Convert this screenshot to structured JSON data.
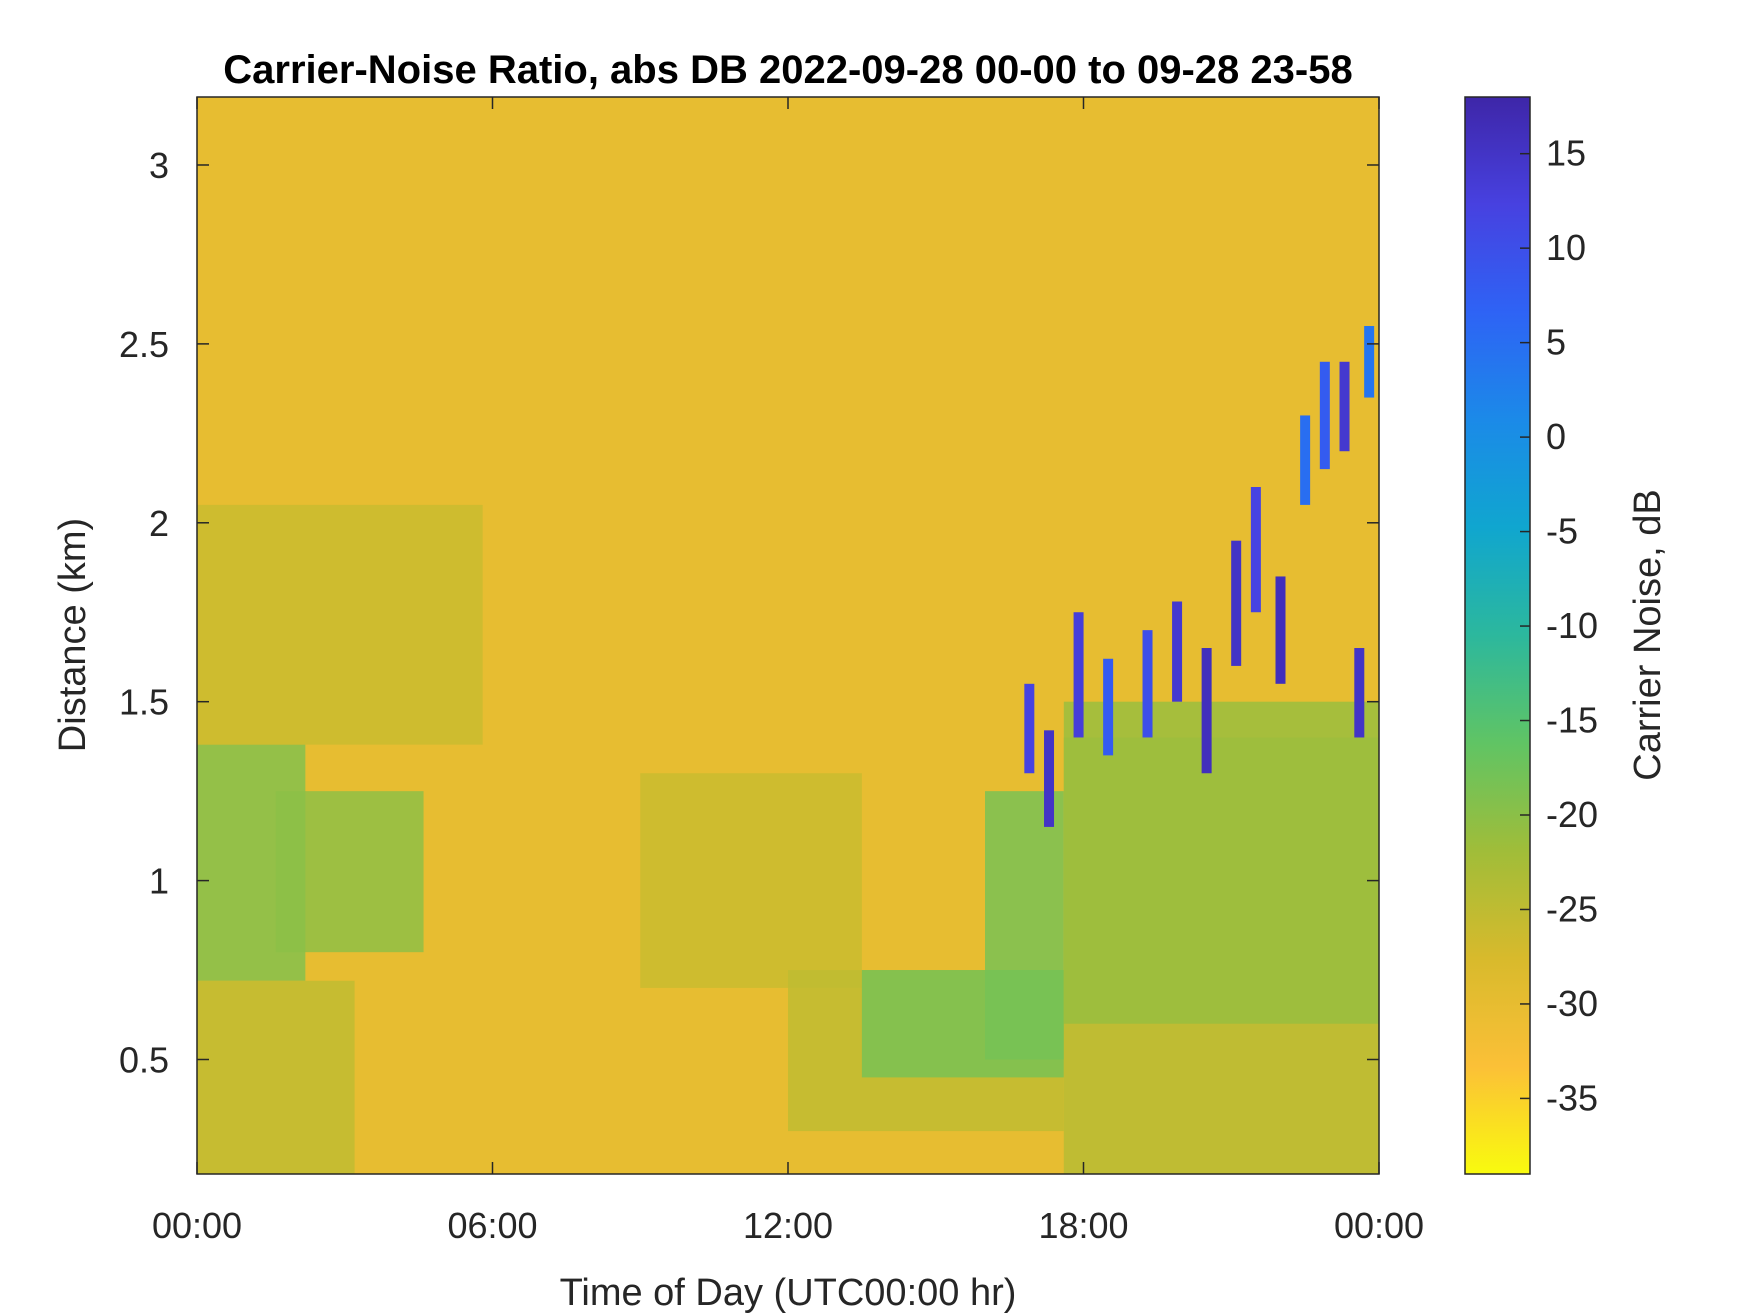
{
  "chart_data": {
    "type": "heatmap",
    "title": "Carrier-Noise Ratio, abs DB 2022-09-28 00-00 to 09-28 23-58",
    "xlabel": "Time of Day (UTC00:00 hr)",
    "ylabel": "Distance (km)",
    "colorbar_label": "Carrier Noise, dB",
    "x_ticks": [
      "00:00",
      "06:00",
      "12:00",
      "18:00",
      "00:00"
    ],
    "x_tick_hours": [
      0,
      6,
      12,
      18,
      24
    ],
    "xlim_hours": [
      0,
      24
    ],
    "y_ticks": [
      "0.5",
      "1",
      "1.5",
      "2",
      "2.5",
      "3"
    ],
    "y_tick_values": [
      0.5,
      1,
      1.5,
      2,
      2.5,
      3
    ],
    "ylim": [
      0.18,
      3.19
    ],
    "colorbar_ticks": [
      "15",
      "10",
      "5",
      "0",
      "-5",
      "-10",
      "-15",
      "-20",
      "-25",
      "-30",
      "-35"
    ],
    "colorbar_tick_values": [
      15,
      10,
      5,
      0,
      -5,
      -10,
      -15,
      -20,
      -25,
      -30,
      -35
    ],
    "clim": [
      -39,
      18
    ],
    "colormap": "parula",
    "colormap_stops": [
      "#f9fb0e",
      "#fbc037",
      "#d8ba2c",
      "#a0bd39",
      "#60c464",
      "#2cb89d",
      "#10a6cf",
      "#1b8ae8",
      "#2e63f5",
      "#4741e0",
      "#3e26a8"
    ],
    "background_level_db": -30,
    "features": [
      {
        "t0": 0.0,
        "t1": 2.2,
        "d0": 0.72,
        "d1": 1.38,
        "db": -19
      },
      {
        "t0": 1.6,
        "t1": 4.6,
        "d0": 0.8,
        "d1": 1.25,
        "db": -20
      },
      {
        "t0": 0.0,
        "t1": 3.2,
        "d0": 0.18,
        "d1": 0.72,
        "db": -25
      },
      {
        "t0": 0.0,
        "t1": 5.8,
        "d0": 1.38,
        "d1": 2.05,
        "db": -26
      },
      {
        "t0": 9.0,
        "t1": 13.5,
        "d0": 0.7,
        "d1": 1.3,
        "db": -26
      },
      {
        "t0": 12.0,
        "t1": 17.6,
        "d0": 0.3,
        "d1": 0.75,
        "db": -25
      },
      {
        "t0": 13.5,
        "t1": 17.6,
        "d0": 0.45,
        "d1": 0.75,
        "db": -18
      },
      {
        "t0": 16.0,
        "t1": 17.6,
        "d0": 0.5,
        "d1": 1.25,
        "db": -18
      },
      {
        "t0": 17.6,
        "t1": 24.0,
        "d0": 0.18,
        "d1": 1.4,
        "db": -24
      },
      {
        "t0": 17.6,
        "t1": 24.0,
        "d0": 0.6,
        "d1": 1.5,
        "db": -21
      }
    ],
    "strong_echoes": [
      {
        "t": 16.9,
        "d0": 1.3,
        "d1": 1.55,
        "db": 12
      },
      {
        "t": 17.3,
        "d0": 1.15,
        "d1": 1.42,
        "db": 15
      },
      {
        "t": 17.9,
        "d0": 1.4,
        "d1": 1.75,
        "db": 13
      },
      {
        "t": 18.5,
        "d0": 1.35,
        "d1": 1.62,
        "db": 8
      },
      {
        "t": 19.3,
        "d0": 1.4,
        "d1": 1.7,
        "db": 10
      },
      {
        "t": 19.9,
        "d0": 1.5,
        "d1": 1.78,
        "db": 14
      },
      {
        "t": 20.5,
        "d0": 1.3,
        "d1": 1.65,
        "db": 16
      },
      {
        "t": 21.1,
        "d0": 1.6,
        "d1": 1.95,
        "db": 15
      },
      {
        "t": 21.5,
        "d0": 1.75,
        "d1": 2.1,
        "db": 12
      },
      {
        "t": 22.0,
        "d0": 1.55,
        "d1": 1.85,
        "db": 16
      },
      {
        "t": 22.5,
        "d0": 2.05,
        "d1": 2.3,
        "db": 5
      },
      {
        "t": 22.9,
        "d0": 2.15,
        "d1": 2.45,
        "db": 8
      },
      {
        "t": 23.3,
        "d0": 2.2,
        "d1": 2.45,
        "db": 14
      },
      {
        "t": 23.6,
        "d0": 1.4,
        "d1": 1.65,
        "db": 15
      },
      {
        "t": 23.8,
        "d0": 2.35,
        "d1": 2.55,
        "db": 4
      }
    ]
  }
}
